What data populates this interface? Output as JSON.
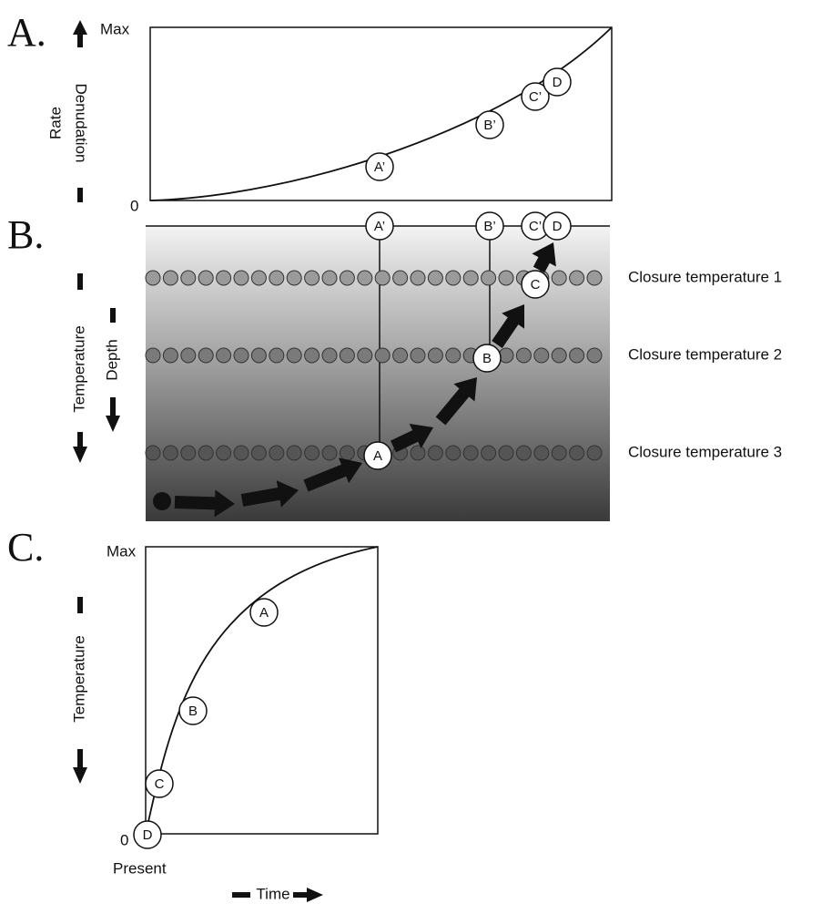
{
  "panel_a": {
    "label": "A.",
    "y_axis": {
      "title_lines": [
        "Denudation",
        "Rate"
      ],
      "max": "Max",
      "min": "0"
    },
    "markers": [
      "A’",
      "B’",
      "C’",
      "D"
    ]
  },
  "panel_b": {
    "label": "B.",
    "y_axis": {
      "outer": "Temperature",
      "inner": "Depth"
    },
    "top_markers": [
      "A’",
      "B’",
      "C’",
      "D"
    ],
    "path_markers": [
      "A",
      "B",
      "C"
    ],
    "levels": [
      "Closure temperature 1",
      "Closure temperature 2",
      "Closure temperature 3"
    ]
  },
  "panel_c": {
    "label": "C.",
    "y_axis": {
      "title": "Temperature",
      "max": "Max",
      "min": "0"
    },
    "markers": [
      "A",
      "B",
      "C",
      "D"
    ],
    "x_axis": {
      "start": "Present",
      "title": "Time"
    }
  }
}
